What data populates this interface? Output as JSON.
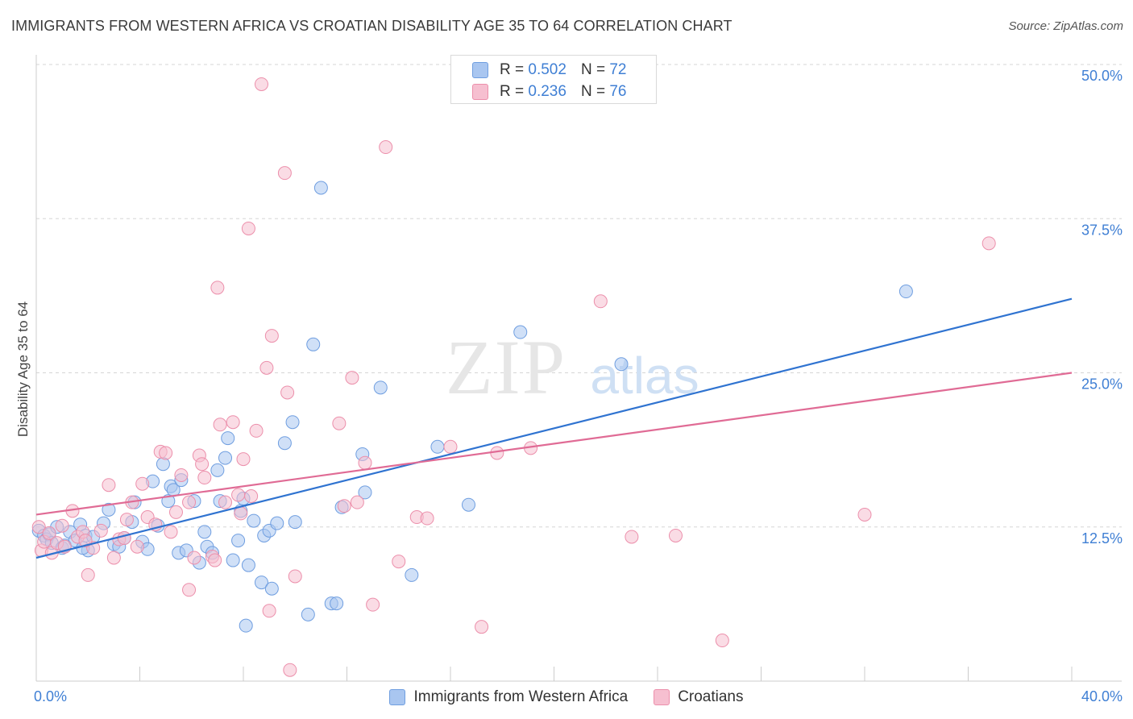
{
  "title": "IMMIGRANTS FROM WESTERN AFRICA VS CROATIAN DISABILITY AGE 35 TO 64 CORRELATION CHART",
  "source": "Source: ZipAtlas.com",
  "watermark": {
    "zip": "ZIP",
    "atlas": "atlas"
  },
  "legend_stats": [
    {
      "r_label": "R =",
      "r_value": "0.502",
      "n_label": "N =",
      "n_value": "72"
    },
    {
      "r_label": "R =",
      "r_value": "0.236",
      "n_label": "N =",
      "n_value": "76"
    }
  ],
  "colors": {
    "blue_fill": "#a9c6f0",
    "blue_stroke": "#6f9ee0",
    "blue_line": "#2f73d0",
    "pink_fill": "#f6bfd0",
    "pink_stroke": "#ec8fab",
    "pink_line": "#e06b95",
    "tick_label": "#3f7fd4",
    "grid": "#d6d6d6"
  },
  "chart_data": {
    "type": "scatter",
    "title": "IMMIGRANTS FROM WESTERN AFRICA VS CROATIAN DISABILITY AGE 35 TO 64 CORRELATION CHART",
    "xlabel": "",
    "ylabel": "Disability Age 35 to 64",
    "xlim": [
      0,
      40
    ],
    "ylim": [
      0,
      50
    ],
    "x_tick_labels": [
      {
        "value": 0,
        "label": "0.0%"
      },
      {
        "value": 40,
        "label": "40.0%"
      }
    ],
    "y_tick_labels": [
      {
        "value": 12.5,
        "label": "12.5%"
      },
      {
        "value": 25.0,
        "label": "25.0%"
      },
      {
        "value": 37.5,
        "label": "37.5%"
      },
      {
        "value": 50.0,
        "label": "50.0%"
      }
    ],
    "series": [
      {
        "name": "Immigrants from Western Africa",
        "color": "blue",
        "points": [
          [
            0.1,
            12.2
          ],
          [
            0.3,
            11.8
          ],
          [
            0.4,
            11.5
          ],
          [
            0.5,
            11.9
          ],
          [
            0.6,
            11.2
          ],
          [
            0.8,
            12.5
          ],
          [
            1.0,
            10.8
          ],
          [
            1.1,
            11.0
          ],
          [
            1.3,
            12.1
          ],
          [
            1.5,
            11.4
          ],
          [
            1.7,
            12.7
          ],
          [
            1.9,
            11.8
          ],
          [
            2.0,
            10.6
          ],
          [
            2.2,
            11.7
          ],
          [
            2.6,
            12.8
          ],
          [
            2.8,
            13.9
          ],
          [
            3.0,
            11.1
          ],
          [
            3.2,
            10.9
          ],
          [
            3.4,
            11.6
          ],
          [
            3.7,
            12.9
          ],
          [
            3.8,
            14.5
          ],
          [
            4.1,
            11.3
          ],
          [
            4.3,
            10.7
          ],
          [
            4.5,
            16.2
          ],
          [
            4.7,
            12.6
          ],
          [
            4.9,
            17.6
          ],
          [
            5.1,
            14.6
          ],
          [
            5.2,
            15.8
          ],
          [
            5.3,
            15.5
          ],
          [
            5.5,
            10.4
          ],
          [
            5.6,
            16.3
          ],
          [
            5.8,
            10.6
          ],
          [
            6.1,
            14.6
          ],
          [
            6.3,
            9.6
          ],
          [
            6.5,
            12.1
          ],
          [
            6.6,
            10.9
          ],
          [
            6.8,
            10.4
          ],
          [
            7.0,
            17.1
          ],
          [
            7.1,
            14.6
          ],
          [
            7.3,
            18.1
          ],
          [
            7.4,
            19.7
          ],
          [
            7.6,
            9.8
          ],
          [
            7.8,
            11.4
          ],
          [
            7.9,
            13.8
          ],
          [
            8.0,
            14.8
          ],
          [
            8.1,
            4.5
          ],
          [
            8.2,
            9.4
          ],
          [
            8.4,
            13.0
          ],
          [
            8.7,
            8.0
          ],
          [
            8.8,
            11.8
          ],
          [
            9.0,
            12.2
          ],
          [
            9.1,
            7.5
          ],
          [
            9.3,
            12.8
          ],
          [
            9.6,
            19.3
          ],
          [
            9.9,
            21.0
          ],
          [
            10.0,
            12.9
          ],
          [
            10.5,
            5.4
          ],
          [
            10.7,
            27.3
          ],
          [
            11.0,
            40.0
          ],
          [
            11.4,
            6.3
          ],
          [
            11.6,
            6.3
          ],
          [
            11.8,
            14.1
          ],
          [
            12.6,
            18.4
          ],
          [
            12.7,
            15.3
          ],
          [
            13.3,
            23.8
          ],
          [
            14.5,
            8.6
          ],
          [
            15.5,
            19.0
          ],
          [
            16.7,
            14.3
          ],
          [
            18.7,
            28.3
          ],
          [
            22.6,
            25.7
          ],
          [
            33.6,
            31.6
          ],
          [
            1.8,
            10.8
          ]
        ],
        "trend": {
          "x": [
            0,
            40
          ],
          "y": [
            10.0,
            31.0
          ]
        }
      },
      {
        "name": "Croatians",
        "color": "pink",
        "points": [
          [
            0.1,
            12.5
          ],
          [
            0.2,
            10.6
          ],
          [
            0.3,
            11.3
          ],
          [
            0.5,
            12.0
          ],
          [
            0.6,
            10.4
          ],
          [
            0.8,
            11.2
          ],
          [
            1.0,
            12.6
          ],
          [
            1.1,
            10.9
          ],
          [
            1.4,
            13.8
          ],
          [
            1.6,
            11.7
          ],
          [
            1.8,
            12.1
          ],
          [
            2.0,
            8.6
          ],
          [
            2.2,
            10.8
          ],
          [
            2.5,
            12.2
          ],
          [
            2.8,
            15.9
          ],
          [
            3.0,
            10.0
          ],
          [
            3.2,
            11.5
          ],
          [
            3.4,
            11.6
          ],
          [
            3.5,
            13.1
          ],
          [
            3.7,
            14.5
          ],
          [
            3.9,
            10.9
          ],
          [
            4.1,
            16.0
          ],
          [
            4.3,
            13.3
          ],
          [
            4.6,
            12.7
          ],
          [
            4.8,
            18.6
          ],
          [
            5.0,
            18.5
          ],
          [
            5.2,
            12.1
          ],
          [
            5.4,
            13.7
          ],
          [
            5.6,
            16.7
          ],
          [
            5.9,
            14.5
          ],
          [
            5.9,
            7.4
          ],
          [
            6.1,
            10.0
          ],
          [
            6.3,
            18.3
          ],
          [
            6.4,
            17.6
          ],
          [
            6.5,
            16.5
          ],
          [
            6.8,
            10.1
          ],
          [
            7.0,
            31.9
          ],
          [
            7.1,
            20.8
          ],
          [
            7.3,
            14.5
          ],
          [
            7.6,
            21.0
          ],
          [
            7.8,
            15.1
          ],
          [
            7.9,
            13.6
          ],
          [
            8.0,
            18.0
          ],
          [
            8.2,
            36.7
          ],
          [
            8.3,
            15.0
          ],
          [
            8.5,
            20.3
          ],
          [
            8.7,
            48.4
          ],
          [
            8.9,
            25.4
          ],
          [
            9.0,
            5.7
          ],
          [
            9.1,
            28.0
          ],
          [
            9.6,
            41.2
          ],
          [
            9.7,
            23.4
          ],
          [
            9.8,
            0.9
          ],
          [
            10.0,
            8.5
          ],
          [
            11.7,
            20.9
          ],
          [
            11.9,
            14.2
          ],
          [
            12.2,
            24.6
          ],
          [
            12.7,
            17.7
          ],
          [
            13.0,
            6.2
          ],
          [
            13.5,
            43.3
          ],
          [
            14.0,
            9.7
          ],
          [
            14.7,
            13.3
          ],
          [
            16.0,
            19.0
          ],
          [
            17.2,
            4.4
          ],
          [
            17.8,
            18.5
          ],
          [
            19.1,
            18.9
          ],
          [
            21.8,
            30.8
          ],
          [
            23.0,
            11.7
          ],
          [
            24.7,
            11.8
          ],
          [
            26.5,
            3.3
          ],
          [
            32.0,
            13.5
          ],
          [
            36.8,
            35.5
          ],
          [
            1.9,
            11.4
          ],
          [
            6.9,
            9.8
          ],
          [
            12.4,
            14.5
          ],
          [
            15.1,
            13.2
          ]
        ],
        "trend": {
          "x": [
            0,
            40
          ],
          "y": [
            13.5,
            25.0
          ]
        }
      }
    ]
  }
}
